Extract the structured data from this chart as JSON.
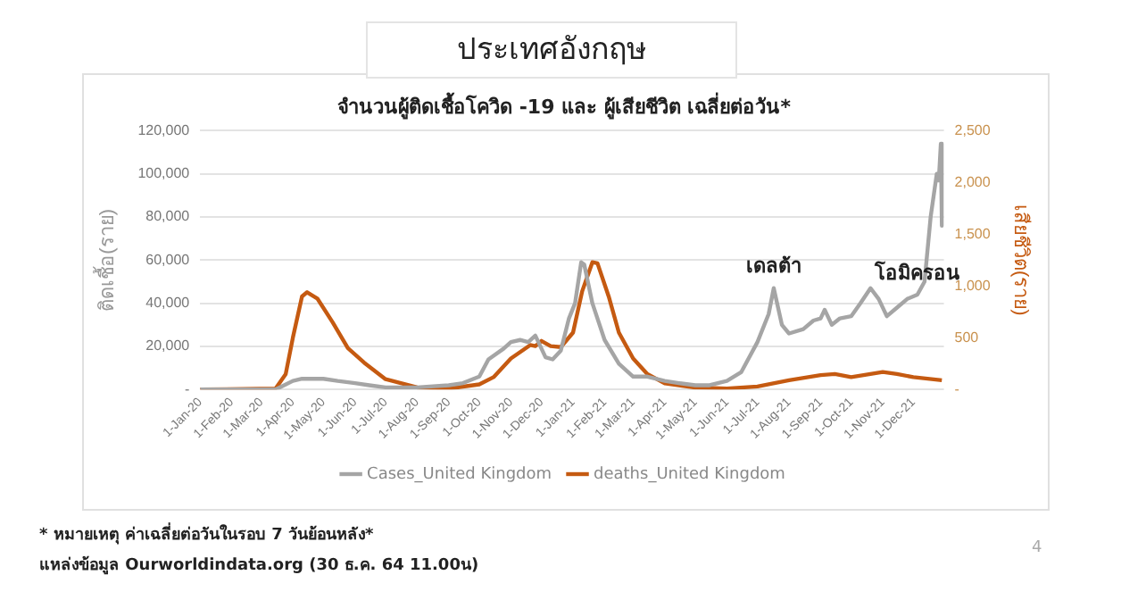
{
  "chart_data": {
    "type": "line",
    "title": "ประเทศอังกฤษ",
    "subtitle": "จำนวนผู้ติดเชื้อโควิด -19 และ ผู้เสียชีวิต เฉลี่ยต่อวัน*",
    "ylabel": "ติดเชื้อ(ราย)",
    "y2label": "เสียชีวิต(ราย)",
    "series": [
      {
        "name": "Cases_United Kingdom",
        "color": "#a5a5a5",
        "x": [
          "2020-01-01",
          "2020-03-15",
          "2020-04-01",
          "2020-04-10",
          "2020-05-01",
          "2020-05-15",
          "2020-06-01",
          "2020-06-15",
          "2020-07-01",
          "2020-08-01",
          "2020-09-01",
          "2020-09-15",
          "2020-10-01",
          "2020-10-10",
          "2020-10-25",
          "2020-11-01",
          "2020-11-10",
          "2020-11-18",
          "2020-11-25",
          "2020-12-05",
          "2020-12-12",
          "2020-12-20",
          "2020-12-28",
          "2021-01-03",
          "2021-01-09",
          "2021-01-12",
          "2021-01-20",
          "2021-02-01",
          "2021-02-15",
          "2021-03-01",
          "2021-03-15",
          "2021-04-01",
          "2021-04-15",
          "2021-05-01",
          "2021-05-15",
          "2021-06-01",
          "2021-06-15",
          "2021-07-01",
          "2021-07-12",
          "2021-07-17",
          "2021-07-25",
          "2021-08-01",
          "2021-08-15",
          "2021-08-25",
          "2021-09-01",
          "2021-09-05",
          "2021-09-12",
          "2021-09-20",
          "2021-10-01",
          "2021-10-10",
          "2021-10-20",
          "2021-10-28",
          "2021-11-05",
          "2021-11-15",
          "2021-11-25",
          "2021-12-05",
          "2021-12-12",
          "2021-12-18",
          "2021-12-24",
          "2021-12-26",
          "2021-12-28",
          "2021-12-29"
        ],
        "values": [
          0,
          0,
          4000,
          5000,
          5000,
          4000,
          3000,
          2000,
          1000,
          1000,
          2000,
          3000,
          6000,
          14000,
          19000,
          22000,
          23000,
          22000,
          25000,
          15000,
          14000,
          18000,
          33000,
          40000,
          59000,
          58000,
          40000,
          23000,
          12000,
          6000,
          6000,
          4000,
          3000,
          2000,
          2000,
          4000,
          8000,
          22000,
          35000,
          47000,
          30000,
          26000,
          28000,
          32000,
          33000,
          37000,
          30000,
          33000,
          34000,
          40000,
          47000,
          42000,
          34000,
          38000,
          42000,
          44000,
          50000,
          80000,
          100000,
          97000,
          114000,
          76000
        ]
      },
      {
        "name": "deaths_United Kingdom",
        "color": "#c55a11",
        "axis": "y2",
        "x": [
          "2020-01-01",
          "2020-03-15",
          "2020-03-25",
          "2020-04-01",
          "2020-04-10",
          "2020-04-15",
          "2020-04-25",
          "2020-05-10",
          "2020-05-25",
          "2020-06-10",
          "2020-07-01",
          "2020-08-01",
          "2020-09-01",
          "2020-10-01",
          "2020-10-15",
          "2020-11-01",
          "2020-11-20",
          "2020-11-25",
          "2020-12-01",
          "2020-12-10",
          "2020-12-20",
          "2021-01-01",
          "2021-01-10",
          "2021-01-20",
          "2021-01-25",
          "2021-02-05",
          "2021-02-15",
          "2021-03-01",
          "2021-03-15",
          "2021-04-01",
          "2021-05-01",
          "2021-06-01",
          "2021-07-01",
          "2021-08-01",
          "2021-09-01",
          "2021-09-15",
          "2021-10-01",
          "2021-11-01",
          "2021-11-15",
          "2021-12-01",
          "2021-12-29"
        ],
        "values": [
          0,
          10,
          150,
          500,
          900,
          940,
          880,
          650,
          400,
          260,
          100,
          20,
          10,
          50,
          120,
          300,
          430,
          420,
          470,
          420,
          410,
          550,
          950,
          1230,
          1220,
          900,
          550,
          300,
          150,
          60,
          20,
          10,
          30,
          90,
          140,
          150,
          120,
          170,
          150,
          120,
          90
        ]
      }
    ],
    "xlim": [
      "2020-01-01",
      "2021-12-31"
    ],
    "xticks": [
      {
        "value": "2020-01-01",
        "label": "1-Jan-20"
      },
      {
        "value": "2020-02-01",
        "label": "1-Feb-20"
      },
      {
        "value": "2020-03-01",
        "label": "1-Mar-20"
      },
      {
        "value": "2020-04-01",
        "label": "1-Apr-20"
      },
      {
        "value": "2020-05-01",
        "label": "1-May-20"
      },
      {
        "value": "2020-06-01",
        "label": "1-Jun-20"
      },
      {
        "value": "2020-07-01",
        "label": "1-Jul-20"
      },
      {
        "value": "2020-08-01",
        "label": "1-Aug-20"
      },
      {
        "value": "2020-09-01",
        "label": "1-Sep-20"
      },
      {
        "value": "2020-10-01",
        "label": "1-Oct-20"
      },
      {
        "value": "2020-11-01",
        "label": "1-Nov-20"
      },
      {
        "value": "2020-12-01",
        "label": "1-Dec-20"
      },
      {
        "value": "2021-01-01",
        "label": "1-Jan-21"
      },
      {
        "value": "2021-02-01",
        "label": "1-Feb-21"
      },
      {
        "value": "2021-03-01",
        "label": "1-Mar-21"
      },
      {
        "value": "2021-04-01",
        "label": "1-Apr-21"
      },
      {
        "value": "2021-05-01",
        "label": "1-May-21"
      },
      {
        "value": "2021-06-01",
        "label": "1-Jun-21"
      },
      {
        "value": "2021-07-01",
        "label": "1-Jul-21"
      },
      {
        "value": "2021-08-01",
        "label": "1-Aug-21"
      },
      {
        "value": "2021-09-01",
        "label": "1-Sep-21"
      },
      {
        "value": "2021-10-01",
        "label": "1-Oct-21"
      },
      {
        "value": "2021-11-01",
        "label": "1-Nov-21"
      },
      {
        "value": "2021-12-01",
        "label": "1-Dec-21"
      }
    ],
    "ylim": [
      0,
      120000
    ],
    "yticks": [
      {
        "value": 0,
        "label": "-"
      },
      {
        "value": 20000,
        "label": "20,000"
      },
      {
        "value": 40000,
        "label": "40,000"
      },
      {
        "value": 60000,
        "label": "60,000"
      },
      {
        "value": 80000,
        "label": "80,000"
      },
      {
        "value": 100000,
        "label": "100,000"
      },
      {
        "value": 120000,
        "label": "120,000"
      }
    ],
    "y2lim": [
      0,
      2500
    ],
    "y2ticks": [
      {
        "value": 0,
        "label": "-"
      },
      500,
      {
        "value": 1000,
        "label": "1,000"
      },
      {
        "value": 1500,
        "label": "1,500"
      },
      {
        "value": 2000,
        "label": "2,000"
      },
      {
        "value": 2500,
        "label": "2,500"
      }
    ],
    "grid": "y",
    "legend": "bottom",
    "marker": "none",
    "line_style": "solid",
    "annotations": [
      {
        "text": "เดลต้า",
        "x": "2021-07-17",
        "y": 47000
      },
      {
        "text": "โอมิครอน",
        "x": "2021-12-05",
        "y": 44000
      },
      "* หมายเหตุ ค่าเฉลี่ยต่อวันในรอบ 7 วันย้อนหลัง*",
      "แหล่งข้อมูล Ourworldindata.org (30 ธ.ค. 64 11.00น)",
      "4"
    ]
  }
}
